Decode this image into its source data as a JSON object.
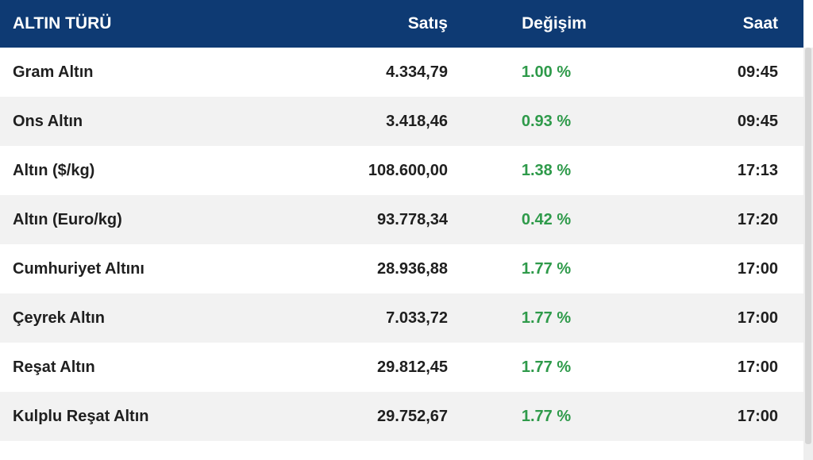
{
  "colors": {
    "header_bg": "#0e3a73",
    "header_text": "#ffffff",
    "row_alt_bg": "#f2f2f2",
    "change_positive": "#2e9a4a"
  },
  "table": {
    "headers": {
      "name": "ALTIN TÜRÜ",
      "sale": "Satış",
      "change": "Değişim",
      "time": "Saat"
    },
    "rows": [
      {
        "name": "Gram Altın",
        "sale": "4.334,79",
        "change": "1.00 %",
        "time": "09:45"
      },
      {
        "name": "Ons Altın",
        "sale": "3.418,46",
        "change": "0.93 %",
        "time": "09:45"
      },
      {
        "name": "Altın ($/kg)",
        "sale": "108.600,00",
        "change": "1.38 %",
        "time": "17:13"
      },
      {
        "name": "Altın (Euro/kg)",
        "sale": "93.778,34",
        "change": "0.42 %",
        "time": "17:20"
      },
      {
        "name": "Cumhuriyet Altını",
        "sale": "28.936,88",
        "change": "1.77 %",
        "time": "17:00"
      },
      {
        "name": "Çeyrek Altın",
        "sale": "7.033,72",
        "change": "1.77 %",
        "time": "17:00"
      },
      {
        "name": "Reşat Altın",
        "sale": "29.812,45",
        "change": "1.77 %",
        "time": "17:00"
      },
      {
        "name": "Kulplu Reşat Altın",
        "sale": "29.752,67",
        "change": "1.77 %",
        "time": "17:00"
      }
    ]
  }
}
